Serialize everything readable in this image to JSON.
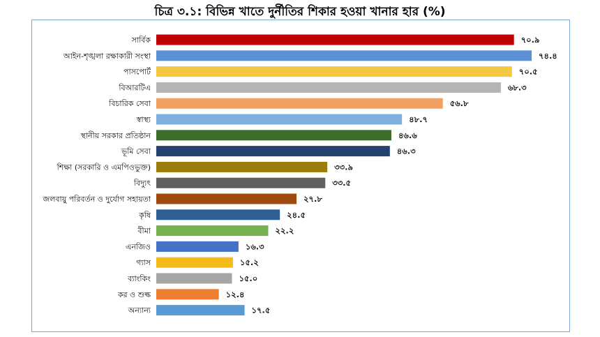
{
  "chart_data": {
    "type": "bar",
    "orientation": "horizontal",
    "title": "চিত্র ৩.১: বিভিন্ন খাতে দুর্নীতির শিকার হওয়া খানার হার (%)",
    "xlim": [
      0,
      80
    ],
    "grid": false,
    "categories": [
      "সার্বিক",
      "আইন-শৃঙ্খলা রক্ষাকারী সংস্থা",
      "পাসপোর্ট",
      "বিআরটিএ",
      "বিচারিক সেবা",
      "স্বাস্থ্য",
      "স্থানীয় সরকার প্রতিষ্ঠান",
      "ভূমি সেবা",
      "শিক্ষা (সরকারি ও এমপিওভুক্ত)",
      "বিদ্যুৎ",
      "জলবায়ু পরিবর্তন ও দুর্যোগ সহায়তা",
      "কৃষি",
      "বীমা",
      "এনজিও",
      "গ্যাস",
      "ব্যাংকিং",
      "কর ও শুল্ক",
      "অন্যান্য"
    ],
    "values": [
      70.9,
      74.4,
      70.5,
      68.3,
      56.8,
      48.7,
      46.6,
      46.3,
      33.9,
      33.5,
      27.8,
      24.5,
      22.2,
      16.3,
      15.2,
      15.0,
      12.4,
      17.5
    ],
    "value_labels": [
      "৭০.৯",
      "৭৪.৪",
      "৭০.৫",
      "৬৮.৩",
      "৫৬.৮",
      "৪৮.৭",
      "৪৬.৬",
      "৪৬.৩",
      "৩৩.৯",
      "৩৩.৫",
      "২৭.৮",
      "২৪.৫",
      "২২.২",
      "১৬.৩",
      "১৫.২",
      "১৫.০",
      "১২.৪",
      "১৭.৫"
    ],
    "colors": [
      "#c00000",
      "#5b8fd6",
      "#f5c842",
      "#b4b4b4",
      "#f0a060",
      "#80b0e0",
      "#3d6b2a",
      "#24426f",
      "#9a7d0a",
      "#606060",
      "#a04a10",
      "#2e5e94",
      "#78b050",
      "#4472c4",
      "#f5bb1a",
      "#a5a5a5",
      "#ed7d31",
      "#5b9bd5"
    ]
  }
}
